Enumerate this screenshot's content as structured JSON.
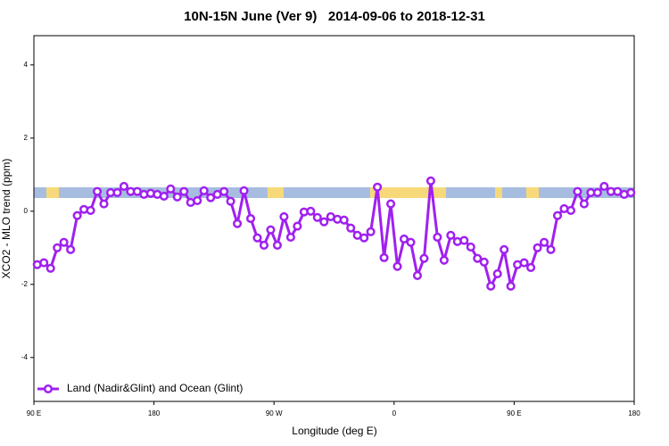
{
  "chart_data": {
    "type": "line",
    "title": "10N-15N June (Ver 9)   2014-09-06 to 2018-12-31",
    "x_label": "Longitude (deg E)",
    "y_label": "XCO2 - MLO trend (ppm)",
    "xlim": [
      90,
      540
    ],
    "xticks": [
      {
        "value": 90,
        "label": "90 E"
      },
      180,
      {
        "value": 270,
        "label": "90 W"
      },
      {
        "value": 360,
        "label": "0"
      },
      {
        "value": 450,
        "label": "90 E"
      },
      {
        "value": 540,
        "label": "180"
      }
    ],
    "ylim": [
      -5.2,
      4.8
    ],
    "yticks": [
      -4,
      -2,
      0,
      2,
      4
    ],
    "legend": "bottom-left",
    "x": [
      92.5,
      97.5,
      102.5,
      107.5,
      112.5,
      117.5,
      122.5,
      127.5,
      132.5,
      137.5,
      142.5,
      147.5,
      152.5,
      157.5,
      162.5,
      167.5,
      172.5,
      177.5,
      182.5,
      187.5,
      192.5,
      197.5,
      202.5,
      207.5,
      212.5,
      217.5,
      222.5,
      227.5,
      232.5,
      237.5,
      242.5,
      247.5,
      252.5,
      257.5,
      262.5,
      267.5,
      272.5,
      277.5,
      282.5,
      287.5,
      292.5,
      297.5,
      302.5,
      307.5,
      312.5,
      317.5,
      322.5,
      327.5,
      332.5,
      337.5,
      342.5,
      347.5,
      352.5,
      357.5,
      362.5,
      367.5,
      372.5,
      377.5,
      382.5,
      387.5,
      392.5,
      397.5,
      402.5,
      407.5,
      412.5,
      417.5,
      422.5,
      427.5,
      432.5,
      437.5,
      442.5,
      447.5,
      452.5,
      457.5,
      462.5,
      467.5,
      472.5,
      477.5,
      482.5,
      487.5,
      492.5,
      497.5,
      502.5,
      507.5,
      512.5,
      517.5,
      522.5,
      527.5,
      532.5,
      537.5
    ],
    "series": [
      {
        "name": "Land (Nadir&Glint) and Ocean (Glint)",
        "color": "#a020f0",
        "values": [
          -1.46,
          -1.41,
          -1.56,
          -1.0,
          -0.85,
          -1.05,
          -0.12,
          0.05,
          0.02,
          0.54,
          0.2,
          0.51,
          0.51,
          0.68,
          0.54,
          0.54,
          0.46,
          0.49,
          0.46,
          0.41,
          0.61,
          0.39,
          0.54,
          0.24,
          0.29,
          0.56,
          0.37,
          0.46,
          0.54,
          0.27,
          -0.34,
          0.56,
          -0.2,
          -0.73,
          -0.93,
          -0.51,
          -0.93,
          -0.15,
          -0.71,
          -0.41,
          -0.02,
          0.0,
          -0.17,
          -0.29,
          -0.15,
          -0.22,
          -0.24,
          -0.46,
          -0.66,
          -0.73,
          -0.56,
          0.66,
          -1.27,
          0.2,
          -1.51,
          -0.76,
          -0.85,
          -1.76,
          -1.29,
          0.83,
          -0.71,
          -1.34,
          -0.66,
          -0.83,
          -0.8,
          -0.98,
          -1.29,
          -1.39,
          -2.05,
          -1.71,
          -1.05,
          -2.05,
          -1.46,
          -1.41,
          -1.54,
          -1.0,
          -0.85,
          -1.05,
          -0.12,
          0.07,
          0.02,
          0.54,
          0.2,
          0.51,
          0.51,
          0.68,
          0.54,
          0.54,
          0.46,
          0.51
        ]
      }
    ]
  }
}
